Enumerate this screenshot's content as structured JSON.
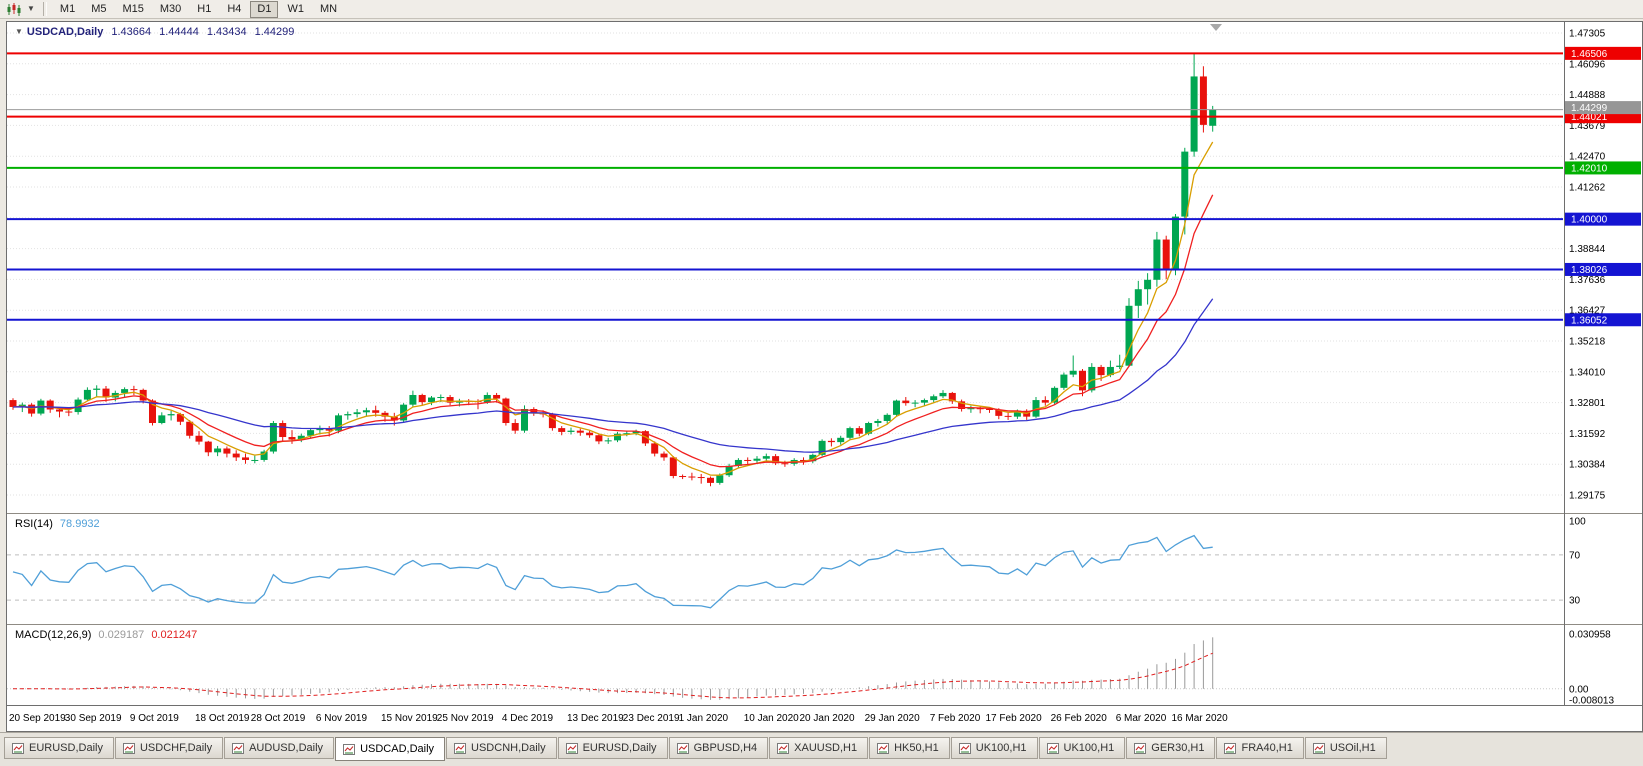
{
  "toolbar": {
    "chart_type_icon": "candlestick-chart-icon",
    "dropdown_icon": "chevron-down-icon",
    "timeframes": [
      "M1",
      "M5",
      "M15",
      "M30",
      "H1",
      "H4",
      "D1",
      "W1",
      "MN"
    ],
    "active_timeframe": "D1"
  },
  "chart": {
    "title": "USDCAD,Daily",
    "ohlc": {
      "open": "1.43664",
      "high": "1.44444",
      "low": "1.43434",
      "close": "1.44299"
    },
    "bid_price": "1.44299",
    "price_axis_labels": [
      "1.47305",
      "1.46096",
      "1.44888",
      "1.43679",
      "1.42470",
      "1.41262",
      "1.40053",
      "1.38844",
      "1.37636",
      "1.36427",
      "1.35218",
      "1.34010",
      "1.32801",
      "1.31592",
      "1.30384",
      "1.29175"
    ],
    "hlines": [
      {
        "price": 1.46506,
        "label": "1.46506",
        "color": "#ee0000"
      },
      {
        "price": 1.44021,
        "label": "1.44021",
        "color": "#ee0000"
      },
      {
        "price": 1.4201,
        "label": "1.42010",
        "color": "#00b000"
      },
      {
        "price": 1.4,
        "label": "1.40000",
        "color": "#1414d2"
      },
      {
        "price": 1.38026,
        "label": "1.38026",
        "color": "#1414d2"
      },
      {
        "price": 1.36052,
        "label": "1.36052",
        "color": "#1414d2"
      }
    ],
    "colors": {
      "candle_up": "#00a651",
      "candle_down": "#e8120c",
      "ma_fast": "#d99e00",
      "ma_mid": "#f02020",
      "ma_slow": "#3535cc",
      "bid_line": "#9b9b9b",
      "bid_box": "#969696",
      "rsi_line": "#4f9fd8",
      "macd_hist": "#9a9a9a",
      "macd_signal": "#e02020"
    }
  },
  "chart_data": {
    "type": "candlestick",
    "symbol": "USDCAD",
    "timeframe": "Daily",
    "visible_price_range": [
      1.2843,
      1.4766
    ],
    "overlays": [
      {
        "name": "MA fast",
        "color": "#d99e00",
        "period": 5
      },
      {
        "name": "MA mid",
        "color": "#f02020",
        "period": 10
      },
      {
        "name": "MA slow",
        "color": "#3535cc",
        "period": 30
      }
    ],
    "time_axis_labels": [
      {
        "text": "20 Sep 2019",
        "i": 0
      },
      {
        "text": "30 Sep 2019",
        "i": 6
      },
      {
        "text": "9 Oct 2019",
        "i": 13
      },
      {
        "text": "18 Oct 2019",
        "i": 20
      },
      {
        "text": "28 Oct 2019",
        "i": 26
      },
      {
        "text": "6 Nov 2019",
        "i": 33
      },
      {
        "text": "15 Nov 2019",
        "i": 40
      },
      {
        "text": "25 Nov 2019",
        "i": 46
      },
      {
        "text": "4 Dec 2019",
        "i": 53
      },
      {
        "text": "13 Dec 2019",
        "i": 60
      },
      {
        "text": "23 Dec 2019",
        "i": 66
      },
      {
        "text": "1 Jan 2020",
        "i": 72
      },
      {
        "text": "10 Jan 2020",
        "i": 79
      },
      {
        "text": "20 Jan 2020",
        "i": 85
      },
      {
        "text": "29 Jan 2020",
        "i": 92
      },
      {
        "text": "7 Feb 2020",
        "i": 99
      },
      {
        "text": "17 Feb 2020",
        "i": 105
      },
      {
        "text": "26 Feb 2020",
        "i": 112
      },
      {
        "text": "6 Mar 2020",
        "i": 119
      },
      {
        "text": "16 Mar 2020",
        "i": 125
      }
    ],
    "candles": [
      [
        1.329,
        1.3297,
        1.3252,
        1.3263
      ],
      [
        1.3263,
        1.328,
        1.3243,
        1.3272
      ],
      [
        1.3272,
        1.3278,
        1.3225,
        1.3237
      ],
      [
        1.3237,
        1.3295,
        1.323,
        1.3288
      ],
      [
        1.3288,
        1.3293,
        1.324,
        1.3253
      ],
      [
        1.3253,
        1.3262,
        1.3222,
        1.3245
      ],
      [
        1.3245,
        1.3259,
        1.3227,
        1.3243
      ],
      [
        1.3243,
        1.33,
        1.3233,
        1.3292
      ],
      [
        1.3292,
        1.334,
        1.3285,
        1.333
      ],
      [
        1.333,
        1.3348,
        1.3303,
        1.3335
      ],
      [
        1.3335,
        1.3345,
        1.3283,
        1.33
      ],
      [
        1.33,
        1.3327,
        1.3285,
        1.3318
      ],
      [
        1.3318,
        1.334,
        1.33,
        1.3333
      ],
      [
        1.3333,
        1.3346,
        1.331,
        1.333
      ],
      [
        1.333,
        1.3335,
        1.3277,
        1.3288
      ],
      [
        1.3288,
        1.3293,
        1.319,
        1.32
      ],
      [
        1.32,
        1.3242,
        1.3195,
        1.323
      ],
      [
        1.323,
        1.3248,
        1.321,
        1.3235
      ],
      [
        1.3235,
        1.324,
        1.3192,
        1.3205
      ],
      [
        1.3205,
        1.3212,
        1.3139,
        1.315
      ],
      [
        1.315,
        1.3168,
        1.3115,
        1.3127
      ],
      [
        1.3127,
        1.313,
        1.307,
        1.3085
      ],
      [
        1.3085,
        1.311,
        1.307,
        1.31
      ],
      [
        1.31,
        1.3108,
        1.3065,
        1.308
      ],
      [
        1.308,
        1.3093,
        1.3051,
        1.3065
      ],
      [
        1.3065,
        1.308,
        1.304,
        1.3055
      ],
      [
        1.3055,
        1.3072,
        1.3042,
        1.3055
      ],
      [
        1.3055,
        1.3095,
        1.3048,
        1.3088
      ],
      [
        1.3088,
        1.3208,
        1.308,
        1.32
      ],
      [
        1.32,
        1.321,
        1.313,
        1.3145
      ],
      [
        1.3145,
        1.3172,
        1.3118,
        1.3135
      ],
      [
        1.3135,
        1.3158,
        1.3125,
        1.315
      ],
      [
        1.315,
        1.318,
        1.314,
        1.3172
      ],
      [
        1.3172,
        1.319,
        1.3155,
        1.318
      ],
      [
        1.318,
        1.3188,
        1.3147,
        1.317
      ],
      [
        1.317,
        1.3238,
        1.316,
        1.323
      ],
      [
        1.323,
        1.3245,
        1.3213,
        1.3235
      ],
      [
        1.3235,
        1.3255,
        1.3222,
        1.3242
      ],
      [
        1.3242,
        1.326,
        1.3225,
        1.325
      ],
      [
        1.325,
        1.3268,
        1.3225,
        1.324
      ],
      [
        1.324,
        1.3247,
        1.3205,
        1.3225
      ],
      [
        1.3225,
        1.324,
        1.319,
        1.321
      ],
      [
        1.321,
        1.3278,
        1.32,
        1.3272
      ],
      [
        1.3272,
        1.3327,
        1.3262,
        1.331
      ],
      [
        1.331,
        1.3315,
        1.327,
        1.3282
      ],
      [
        1.3282,
        1.3306,
        1.327,
        1.33
      ],
      [
        1.33,
        1.3312,
        1.3282,
        1.3302
      ],
      [
        1.3302,
        1.331,
        1.327,
        1.328
      ],
      [
        1.328,
        1.3295,
        1.3265,
        1.3287
      ],
      [
        1.3287,
        1.3294,
        1.327,
        1.3286
      ],
      [
        1.3286,
        1.3293,
        1.3254,
        1.3282
      ],
      [
        1.3282,
        1.332,
        1.3275,
        1.331
      ],
      [
        1.331,
        1.3318,
        1.328,
        1.3296
      ],
      [
        1.3296,
        1.33,
        1.319,
        1.32
      ],
      [
        1.32,
        1.3215,
        1.3158,
        1.317
      ],
      [
        1.317,
        1.3269,
        1.3162,
        1.3255
      ],
      [
        1.3255,
        1.3262,
        1.3228,
        1.3238
      ],
      [
        1.3238,
        1.325,
        1.3222,
        1.3235
      ],
      [
        1.3235,
        1.324,
        1.317,
        1.318
      ],
      [
        1.318,
        1.3188,
        1.3152,
        1.3165
      ],
      [
        1.3165,
        1.3182,
        1.3155,
        1.317
      ],
      [
        1.317,
        1.3178,
        1.315,
        1.3162
      ],
      [
        1.3162,
        1.317,
        1.3142,
        1.3152
      ],
      [
        1.3152,
        1.3158,
        1.3117,
        1.3128
      ],
      [
        1.3128,
        1.3142,
        1.3118,
        1.3132
      ],
      [
        1.3132,
        1.3165,
        1.3125,
        1.3158
      ],
      [
        1.3158,
        1.317,
        1.3148,
        1.316
      ],
      [
        1.316,
        1.3174,
        1.3152,
        1.3168
      ],
      [
        1.3168,
        1.3172,
        1.311,
        1.312
      ],
      [
        1.312,
        1.3128,
        1.3069,
        1.308
      ],
      [
        1.308,
        1.3088,
        1.3052,
        1.3065
      ],
      [
        1.3065,
        1.307,
        1.2983,
        1.2992
      ],
      [
        1.2992,
        1.2998,
        1.298,
        1.299
      ],
      [
        1.299,
        1.3005,
        1.2975,
        1.2988
      ],
      [
        1.2988,
        1.3,
        1.2962,
        1.2985
      ],
      [
        1.2985,
        1.299,
        1.2952,
        1.2965
      ],
      [
        1.2965,
        1.3002,
        1.2958,
        1.2995
      ],
      [
        1.2995,
        1.304,
        1.2988,
        1.3032
      ],
      [
        1.3032,
        1.3062,
        1.3025,
        1.3055
      ],
      [
        1.3055,
        1.3065,
        1.3037,
        1.3052
      ],
      [
        1.3052,
        1.307,
        1.304,
        1.306
      ],
      [
        1.306,
        1.308,
        1.3048,
        1.307
      ],
      [
        1.307,
        1.3078,
        1.3035,
        1.3042
      ],
      [
        1.3042,
        1.3052,
        1.3028,
        1.304
      ],
      [
        1.304,
        1.3062,
        1.3032,
        1.3055
      ],
      [
        1.3055,
        1.3065,
        1.3036,
        1.305
      ],
      [
        1.305,
        1.308,
        1.3042,
        1.3075
      ],
      [
        1.3075,
        1.3136,
        1.307,
        1.313
      ],
      [
        1.313,
        1.314,
        1.3108,
        1.3125
      ],
      [
        1.3125,
        1.315,
        1.3115,
        1.3142
      ],
      [
        1.3142,
        1.3186,
        1.3135,
        1.318
      ],
      [
        1.318,
        1.3188,
        1.3148,
        1.3158
      ],
      [
        1.3158,
        1.3205,
        1.3152,
        1.32
      ],
      [
        1.32,
        1.3216,
        1.3186,
        1.3208
      ],
      [
        1.3208,
        1.3238,
        1.3198,
        1.3232
      ],
      [
        1.3232,
        1.3292,
        1.3228,
        1.3288
      ],
      [
        1.3288,
        1.3302,
        1.3268,
        1.3278
      ],
      [
        1.3278,
        1.329,
        1.3262,
        1.328
      ],
      [
        1.328,
        1.3296,
        1.3268,
        1.329
      ],
      [
        1.329,
        1.3312,
        1.328,
        1.3305
      ],
      [
        1.3305,
        1.3329,
        1.3298,
        1.3318
      ],
      [
        1.3318,
        1.3322,
        1.3275,
        1.3285
      ],
      [
        1.3285,
        1.3292,
        1.3245,
        1.3255
      ],
      [
        1.3255,
        1.3268,
        1.324,
        1.3258
      ],
      [
        1.3258,
        1.3265,
        1.3238,
        1.3255
      ],
      [
        1.3255,
        1.3262,
        1.324,
        1.3252
      ],
      [
        1.3252,
        1.3258,
        1.3215,
        1.3228
      ],
      [
        1.3228,
        1.324,
        1.3212,
        1.3225
      ],
      [
        1.3225,
        1.3253,
        1.3216,
        1.3248
      ],
      [
        1.3248,
        1.3254,
        1.3212,
        1.3225
      ],
      [
        1.3225,
        1.3302,
        1.322,
        1.329
      ],
      [
        1.329,
        1.3305,
        1.3268,
        1.328
      ],
      [
        1.328,
        1.3344,
        1.3272,
        1.3338
      ],
      [
        1.3338,
        1.3398,
        1.333,
        1.339
      ],
      [
        1.339,
        1.3465,
        1.338,
        1.3405
      ],
      [
        1.3405,
        1.3412,
        1.3305,
        1.3328
      ],
      [
        1.3328,
        1.3435,
        1.332,
        1.342
      ],
      [
        1.342,
        1.3428,
        1.3365,
        1.3388
      ],
      [
        1.3388,
        1.3445,
        1.338,
        1.342
      ],
      [
        1.342,
        1.3468,
        1.3412,
        1.3425
      ],
      [
        1.3425,
        1.369,
        1.342,
        1.366
      ],
      [
        1.366,
        1.3758,
        1.3612,
        1.3725
      ],
      [
        1.3725,
        1.3788,
        1.3665,
        1.3762
      ],
      [
        1.3762,
        1.395,
        1.3735,
        1.392
      ],
      [
        1.392,
        1.3935,
        1.3765,
        1.38
      ],
      [
        1.38,
        1.402,
        1.378,
        1.401
      ],
      [
        1.401,
        1.428,
        1.394,
        1.4265
      ],
      [
        1.4265,
        1.4651,
        1.4245,
        1.456
      ],
      [
        1.456,
        1.46,
        1.434,
        1.437
      ],
      [
        1.43664,
        1.44444,
        1.43434,
        1.44299
      ]
    ]
  },
  "indicators": {
    "rsi": {
      "label": "RSI(14)",
      "value": "78.9932",
      "levels": [
        70,
        30
      ],
      "axis_labels": [
        {
          "text": "100",
          "v": 100
        },
        {
          "text": "70",
          "v": 70
        },
        {
          "text": "30",
          "v": 30
        }
      ]
    },
    "macd": {
      "label": "MACD(12,26,9)",
      "value": "0.029187",
      "signal": "0.021247",
      "axis_labels": [
        {
          "text": "0.030958",
          "v": 0.030958
        },
        {
          "text": "0.00",
          "v": 0
        },
        {
          "text": "-0.008013",
          "v": -0.008013
        }
      ]
    }
  },
  "tabs": [
    {
      "label": "EURUSD,Daily",
      "active": false
    },
    {
      "label": "USDCHF,Daily",
      "active": false
    },
    {
      "label": "AUDUSD,Daily",
      "active": false
    },
    {
      "label": "USDCAD,Daily",
      "active": true
    },
    {
      "label": "USDCNH,Daily",
      "active": false
    },
    {
      "label": "EURUSD,Daily",
      "active": false
    },
    {
      "label": "GBPUSD,H4",
      "active": false
    },
    {
      "label": "XAUUSD,H1",
      "active": false
    },
    {
      "label": "HK50,H1",
      "active": false
    },
    {
      "label": "UK100,H1",
      "active": false
    },
    {
      "label": "UK100,H1",
      "active": false
    },
    {
      "label": "GER30,H1",
      "active": false
    },
    {
      "label": "FRA40,H1",
      "active": false
    },
    {
      "label": "USOil,H1",
      "active": false
    }
  ]
}
